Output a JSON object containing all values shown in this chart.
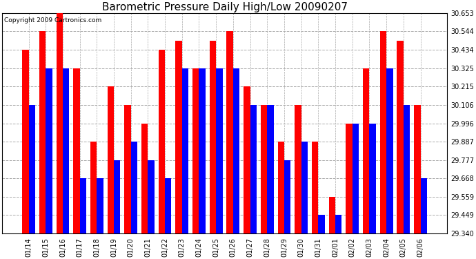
{
  "title": "Barometric Pressure Daily High/Low 20090207",
  "copyright": "Copyright 2009 Cartronics.com",
  "dates": [
    "01/14",
    "01/15",
    "01/16",
    "01/17",
    "01/18",
    "01/19",
    "01/20",
    "01/21",
    "01/22",
    "01/23",
    "01/24",
    "01/25",
    "01/26",
    "01/27",
    "01/28",
    "01/29",
    "01/30",
    "01/31",
    "02/01",
    "02/02",
    "02/03",
    "02/04",
    "02/05",
    "02/06"
  ],
  "highs": [
    30.434,
    30.544,
    30.653,
    30.325,
    29.887,
    30.215,
    30.106,
    29.996,
    30.434,
    30.49,
    30.325,
    30.49,
    30.544,
    30.215,
    30.106,
    29.887,
    30.106,
    29.887,
    29.559,
    29.996,
    30.325,
    30.544,
    30.49,
    30.106
  ],
  "lows": [
    30.106,
    30.325,
    30.325,
    29.668,
    29.668,
    29.777,
    29.887,
    29.777,
    29.668,
    30.325,
    30.325,
    30.325,
    30.325,
    30.106,
    30.106,
    29.777,
    29.887,
    29.449,
    29.449,
    29.996,
    29.996,
    30.325,
    30.106,
    29.668
  ],
  "ylim_min": 29.34,
  "ylim_max": 30.653,
  "yticks": [
    29.34,
    29.449,
    29.559,
    29.668,
    29.777,
    29.887,
    29.996,
    30.106,
    30.215,
    30.325,
    30.434,
    30.544,
    30.653
  ],
  "bar_width": 0.38,
  "high_color": "#ff0000",
  "low_color": "#0000ff",
  "bg_color": "#ffffff",
  "grid_color": "#aaaaaa",
  "title_fontsize": 11,
  "tick_fontsize": 7,
  "copyright_fontsize": 6.5
}
